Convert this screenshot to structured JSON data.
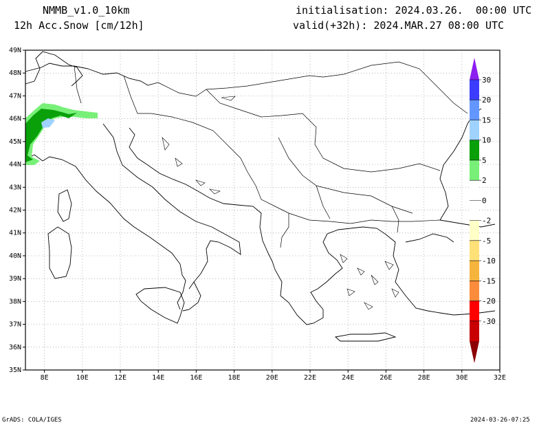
{
  "header": {
    "model": "NMMB_v1.0_10km",
    "product": "12h Acc.Snow [cm/12h]",
    "init": "initialisation: 2024.03.26.  00:00 UTC",
    "valid": "valid(+32h): 2024.MAR.27 08:00 UTC"
  },
  "footer": {
    "credit": "GrADS: COLA/IGES",
    "timestamp": "2024-03-26-07:25"
  },
  "map": {
    "lon_ticks": [
      "8E",
      "10E",
      "12E",
      "14E",
      "16E",
      "18E",
      "20E",
      "22E",
      "24E",
      "26E",
      "28E",
      "30E",
      "32E"
    ],
    "lat_ticks": [
      "49N",
      "48N",
      "47N",
      "46N",
      "45N",
      "44N",
      "43N",
      "42N",
      "41N",
      "40N",
      "39N",
      "38N",
      "37N",
      "36N",
      "35N"
    ]
  },
  "colorbar": {
    "labels": [
      "30",
      "20",
      "15",
      "10",
      "5",
      "2",
      "0",
      "-2",
      "-5",
      "-10",
      "-15",
      "-20",
      "-30"
    ],
    "bins": [
      {
        "color": "#8c1ef0"
      },
      {
        "color": "#3c3cff"
      },
      {
        "color": "#6496ff"
      },
      {
        "color": "#a0d2ff"
      },
      {
        "color": "#0aa00a"
      },
      {
        "color": "#78f078"
      },
      {
        "color": "#ffffff"
      },
      {
        "color": "#ffffff"
      },
      {
        "color": "#ffffc8"
      },
      {
        "color": "#ffe178"
      },
      {
        "color": "#f5b43c"
      },
      {
        "color": "#fa8c3c"
      },
      {
        "color": "#ff0000"
      },
      {
        "color": "#c80000"
      },
      {
        "color": "#8c0000"
      }
    ]
  },
  "colors": {
    "snow_light": "#78f078",
    "snow_dark": "#0aa00a",
    "snow_mid": "#a0d2ff",
    "grid": "#999999"
  }
}
